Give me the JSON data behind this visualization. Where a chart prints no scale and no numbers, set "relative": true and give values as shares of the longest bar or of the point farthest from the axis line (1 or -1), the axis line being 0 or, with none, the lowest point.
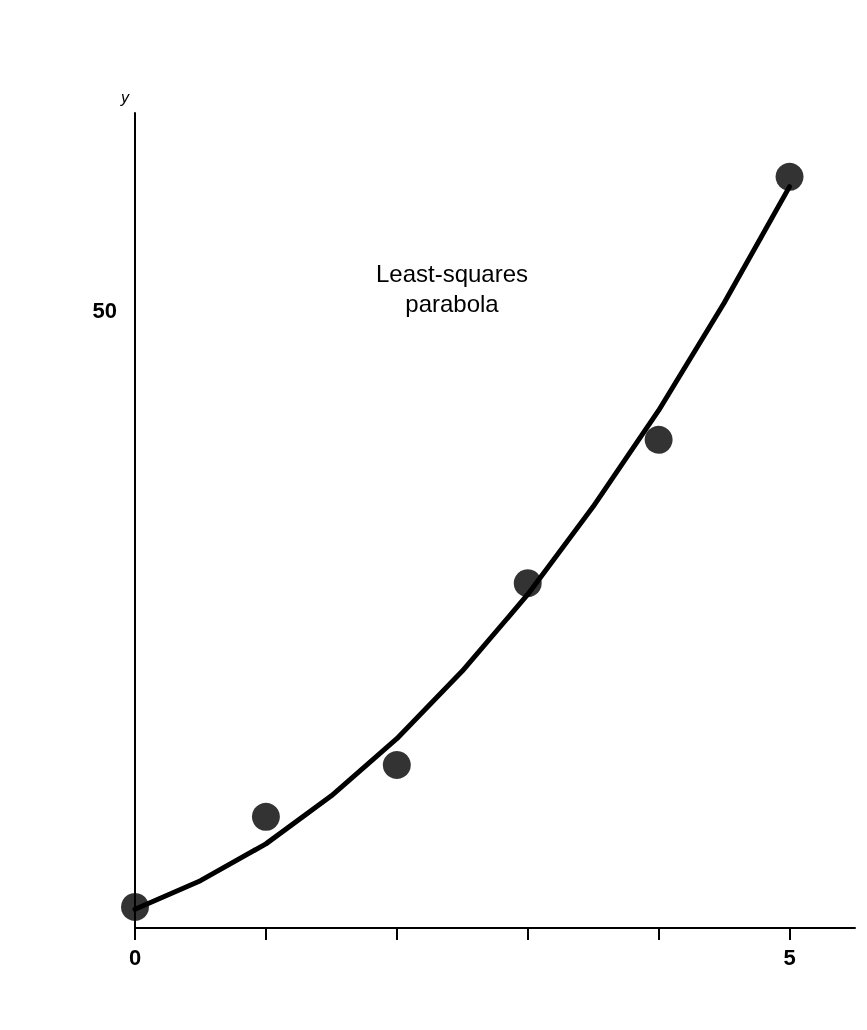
{
  "chart_data": {
    "type": "scatter",
    "ylabel": "y",
    "relative": true,
    "annotations": [
      "Least-squares\nparabola",
      "50"
    ],
    "xlim": [
      0,
      5.5
    ],
    "xticks": [
      0,
      {
        "value": 1,
        "label": null
      },
      {
        "value": 2,
        "label": null
      },
      {
        "value": 3,
        "label": null
      },
      {
        "value": 4,
        "label": null
      },
      5
    ],
    "grid": false,
    "series": [
      {
        "color": "#000000",
        "marker": "circle",
        "x": [
          0,
          1,
          2,
          3,
          4,
          5
        ],
        "values": [
          0.028,
          0.148,
          0.217,
          0.459,
          0.65,
          1
        ]
      },
      {
        "type": "line",
        "color": "#000000",
        "marker": "none",
        "line_style": "solid",
        "x": [
          0,
          0.5,
          1,
          1.5,
          2,
          2.5,
          3,
          3.5,
          4,
          4.5,
          5
        ],
        "values": [
          0.025,
          0.063,
          0.112,
          0.176,
          0.252,
          0.342,
          0.444,
          0.561,
          0.689,
          0.832,
          0.987
        ]
      }
    ]
  }
}
